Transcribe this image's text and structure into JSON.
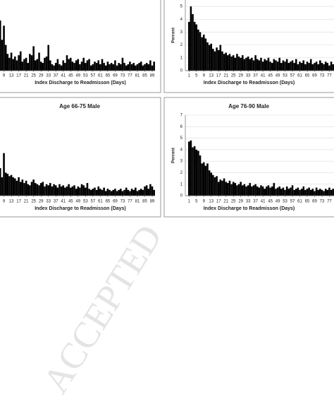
{
  "chart_data": [
    {
      "type": "bar",
      "xlabel": "Index Discharge to Readmisson (Days)",
      "color": "#000000",
      "grid": false,
      "x": [
        7,
        8,
        9,
        10,
        11,
        12,
        13,
        14,
        15,
        16,
        17,
        18,
        19,
        20,
        21,
        22,
        23,
        24,
        25,
        26,
        27,
        28,
        29,
        30,
        31,
        32,
        33,
        34,
        35,
        36,
        37,
        38,
        39,
        40,
        41,
        42,
        43,
        44,
        45,
        46,
        47,
        48,
        49,
        50,
        51,
        52,
        53,
        54,
        55,
        56,
        57,
        58,
        59,
        60,
        61,
        62,
        63,
        64,
        65,
        66,
        67,
        68,
        69,
        70,
        71,
        72,
        73,
        74,
        75,
        76,
        77,
        78,
        79,
        80,
        81,
        82,
        83,
        84,
        85,
        86,
        87,
        88,
        89,
        90
      ],
      "values": [
        3.9,
        2.4,
        3.5,
        2.0,
        1.3,
        1.0,
        1.4,
        0.9,
        1.1,
        0.8,
        1.2,
        1.5,
        0.7,
        0.9,
        1.0,
        0.6,
        1.3,
        1.2,
        1.9,
        0.8,
        0.9,
        1.4,
        0.7,
        0.6,
        1.0,
        1.1,
        2.0,
        0.8,
        0.5,
        0.4,
        0.6,
        0.9,
        0.5,
        0.4,
        0.8,
        0.6,
        1.2,
        0.9,
        1.0,
        0.7,
        0.6,
        0.8,
        0.9,
        0.5,
        0.7,
        1.0,
        0.6,
        0.8,
        0.9,
        0.4,
        0.5,
        0.7,
        0.6,
        0.8,
        0.5,
        0.9,
        0.6,
        0.4,
        0.7,
        0.5,
        0.6,
        0.5,
        0.8,
        0.4,
        0.6,
        0.5,
        1.0,
        0.6,
        0.4,
        0.5,
        0.7,
        0.5,
        0.6,
        0.4,
        0.5,
        0.6,
        0.7,
        0.4,
        0.5,
        0.6,
        0.5,
        0.8,
        0.4,
        0.7
      ],
      "xlim": [
        6.5,
        90.5
      ],
      "xticks": [
        9,
        13,
        17,
        21,
        25,
        29,
        33,
        37,
        41,
        45,
        49,
        53,
        57,
        61,
        65,
        69,
        73,
        77,
        81,
        85,
        89
      ],
      "ylim": [
        0,
        5.5
      ]
    },
    {
      "type": "bar",
      "xlabel": "Index Discharge to Readmisson (Days)",
      "ylabel": "Percent",
      "color": "#000000",
      "grid": true,
      "x": [
        1,
        2,
        3,
        4,
        5,
        6,
        7,
        8,
        9,
        10,
        11,
        12,
        13,
        14,
        15,
        16,
        17,
        18,
        19,
        20,
        21,
        22,
        23,
        24,
        25,
        26,
        27,
        28,
        29,
        30,
        31,
        32,
        33,
        34,
        35,
        36,
        37,
        38,
        39,
        40,
        41,
        42,
        43,
        44,
        45,
        46,
        47,
        48,
        49,
        50,
        51,
        52,
        53,
        54,
        55,
        56,
        57,
        58,
        59,
        60,
        61,
        62,
        63,
        64,
        65,
        66,
        67,
        68,
        69,
        70,
        71,
        72,
        73,
        74,
        75,
        76,
        77,
        78,
        79
      ],
      "values": [
        3.8,
        5.0,
        4.4,
        3.8,
        3.6,
        3.2,
        3.0,
        2.6,
        2.8,
        2.5,
        2.2,
        2.0,
        2.1,
        1.7,
        1.5,
        1.8,
        1.6,
        2.0,
        1.5,
        1.3,
        1.4,
        1.2,
        1.3,
        1.1,
        1.2,
        1.0,
        1.3,
        1.1,
        1.0,
        1.2,
        0.9,
        1.0,
        1.1,
        0.9,
        1.0,
        0.8,
        1.2,
        0.9,
        0.8,
        1.0,
        0.7,
        0.9,
        0.8,
        1.0,
        0.7,
        0.6,
        0.9,
        0.8,
        0.7,
        1.0,
        0.6,
        0.8,
        0.7,
        0.9,
        0.6,
        0.7,
        0.8,
        0.6,
        0.9,
        0.5,
        0.7,
        0.6,
        0.8,
        0.5,
        0.7,
        0.6,
        0.9,
        0.5,
        0.6,
        0.7,
        0.5,
        0.8,
        0.6,
        0.5,
        0.7,
        0.6,
        0.4,
        0.7,
        0.5
      ],
      "xlim": [
        0.5,
        79.5
      ],
      "xticks": [
        1,
        5,
        9,
        13,
        17,
        21,
        25,
        29,
        33,
        37,
        41,
        45,
        49,
        53,
        57,
        61,
        65,
        69,
        73,
        77
      ],
      "ylim": [
        0,
        5.5
      ],
      "yticks": [
        0,
        1,
        2,
        3,
        4,
        5
      ]
    },
    {
      "type": "bar",
      "title": "Age 66-75 Male",
      "xlabel": "Index Discharge to Readmisson (Days)",
      "color": "#000000",
      "grid": false,
      "x": [
        7,
        8,
        9,
        10,
        11,
        12,
        13,
        14,
        15,
        16,
        17,
        18,
        19,
        20,
        21,
        22,
        23,
        24,
        25,
        26,
        27,
        28,
        29,
        30,
        31,
        32,
        33,
        34,
        35,
        36,
        37,
        38,
        39,
        40,
        41,
        42,
        43,
        44,
        45,
        46,
        47,
        48,
        49,
        50,
        51,
        52,
        53,
        54,
        55,
        56,
        57,
        58,
        59,
        60,
        61,
        62,
        63,
        64,
        65,
        66,
        67,
        68,
        69,
        70,
        71,
        72,
        73,
        74,
        75,
        76,
        77,
        78,
        79,
        80,
        81,
        82,
        83,
        84,
        85,
        86,
        87,
        88,
        89,
        90
      ],
      "values": [
        2.4,
        1.6,
        3.7,
        2.0,
        1.9,
        1.7,
        1.8,
        1.6,
        1.5,
        1.3,
        1.6,
        1.2,
        1.4,
        1.1,
        1.3,
        1.0,
        0.9,
        1.2,
        1.4,
        1.1,
        1.0,
        0.9,
        1.1,
        1.2,
        0.8,
        1.0,
        0.9,
        1.1,
        0.8,
        1.0,
        0.9,
        0.7,
        1.0,
        0.8,
        0.9,
        0.7,
        0.8,
        1.0,
        0.7,
        0.8,
        0.9,
        0.6,
        0.8,
        0.7,
        1.0,
        0.9,
        0.7,
        1.1,
        0.6,
        0.5,
        0.6,
        0.7,
        0.5,
        0.8,
        0.6,
        0.5,
        0.7,
        0.4,
        0.6,
        0.5,
        0.4,
        0.5,
        0.6,
        0.4,
        0.5,
        0.6,
        0.4,
        0.5,
        0.7,
        0.5,
        0.4,
        0.6,
        0.5,
        0.7,
        0.4,
        0.5,
        0.6,
        0.5,
        0.8,
        0.9,
        0.6,
        1.0,
        0.8,
        0.5
      ],
      "xlim": [
        6.5,
        90.5
      ],
      "xticks": [
        9,
        13,
        17,
        21,
        25,
        29,
        33,
        37,
        41,
        45,
        49,
        53,
        57,
        61,
        65,
        69,
        73,
        77,
        81,
        85,
        89
      ],
      "ylim": [
        0,
        7
      ]
    },
    {
      "type": "bar",
      "title": "Age 76-90 Male",
      "xlabel": "Index Discharge to Readmisson (Days)",
      "ylabel": "Percent",
      "color": "#000000",
      "grid": true,
      "x": [
        1,
        2,
        3,
        4,
        5,
        6,
        7,
        8,
        9,
        10,
        11,
        12,
        13,
        14,
        15,
        16,
        17,
        18,
        19,
        20,
        21,
        22,
        23,
        24,
        25,
        26,
        27,
        28,
        29,
        30,
        31,
        32,
        33,
        34,
        35,
        36,
        37,
        38,
        39,
        40,
        41,
        42,
        43,
        44,
        45,
        46,
        47,
        48,
        49,
        50,
        51,
        52,
        53,
        54,
        55,
        56,
        57,
        58,
        59,
        60,
        61,
        62,
        63,
        64,
        65,
        66,
        67,
        68,
        69,
        70,
        71,
        72,
        73,
        74,
        75,
        76,
        77,
        78,
        79
      ],
      "values": [
        4.7,
        4.8,
        4.2,
        4.3,
        4.0,
        3.9,
        3.5,
        2.8,
        2.9,
        2.6,
        2.8,
        2.2,
        2.0,
        1.8,
        1.6,
        1.7,
        1.2,
        1.4,
        1.3,
        1.5,
        1.2,
        1.1,
        1.3,
        1.0,
        1.2,
        1.1,
        0.9,
        1.0,
        1.2,
        0.9,
        1.0,
        0.8,
        0.9,
        1.1,
        0.8,
        0.9,
        1.0,
        0.8,
        0.7,
        0.9,
        0.8,
        0.6,
        0.8,
        0.9,
        0.7,
        0.8,
        1.1,
        0.6,
        0.7,
        0.8,
        0.6,
        0.7,
        0.5,
        0.8,
        0.6,
        0.7,
        0.9,
        0.5,
        0.6,
        0.7,
        0.5,
        0.6,
        0.8,
        0.5,
        0.6,
        0.7,
        0.5,
        0.6,
        0.4,
        0.7,
        0.5,
        0.6,
        0.5,
        0.4,
        0.6,
        0.5,
        0.7,
        0.5,
        0.6
      ],
      "xlim": [
        0.5,
        79.5
      ],
      "xticks": [
        1,
        5,
        9,
        13,
        17,
        21,
        25,
        29,
        33,
        37,
        41,
        45,
        49,
        53,
        57,
        61,
        65,
        69,
        73,
        77
      ],
      "ylim": [
        0,
        7
      ],
      "yticks": [
        0,
        1,
        2,
        3,
        4,
        5,
        6,
        7
      ]
    }
  ],
  "watermark": "ACCEPTED"
}
